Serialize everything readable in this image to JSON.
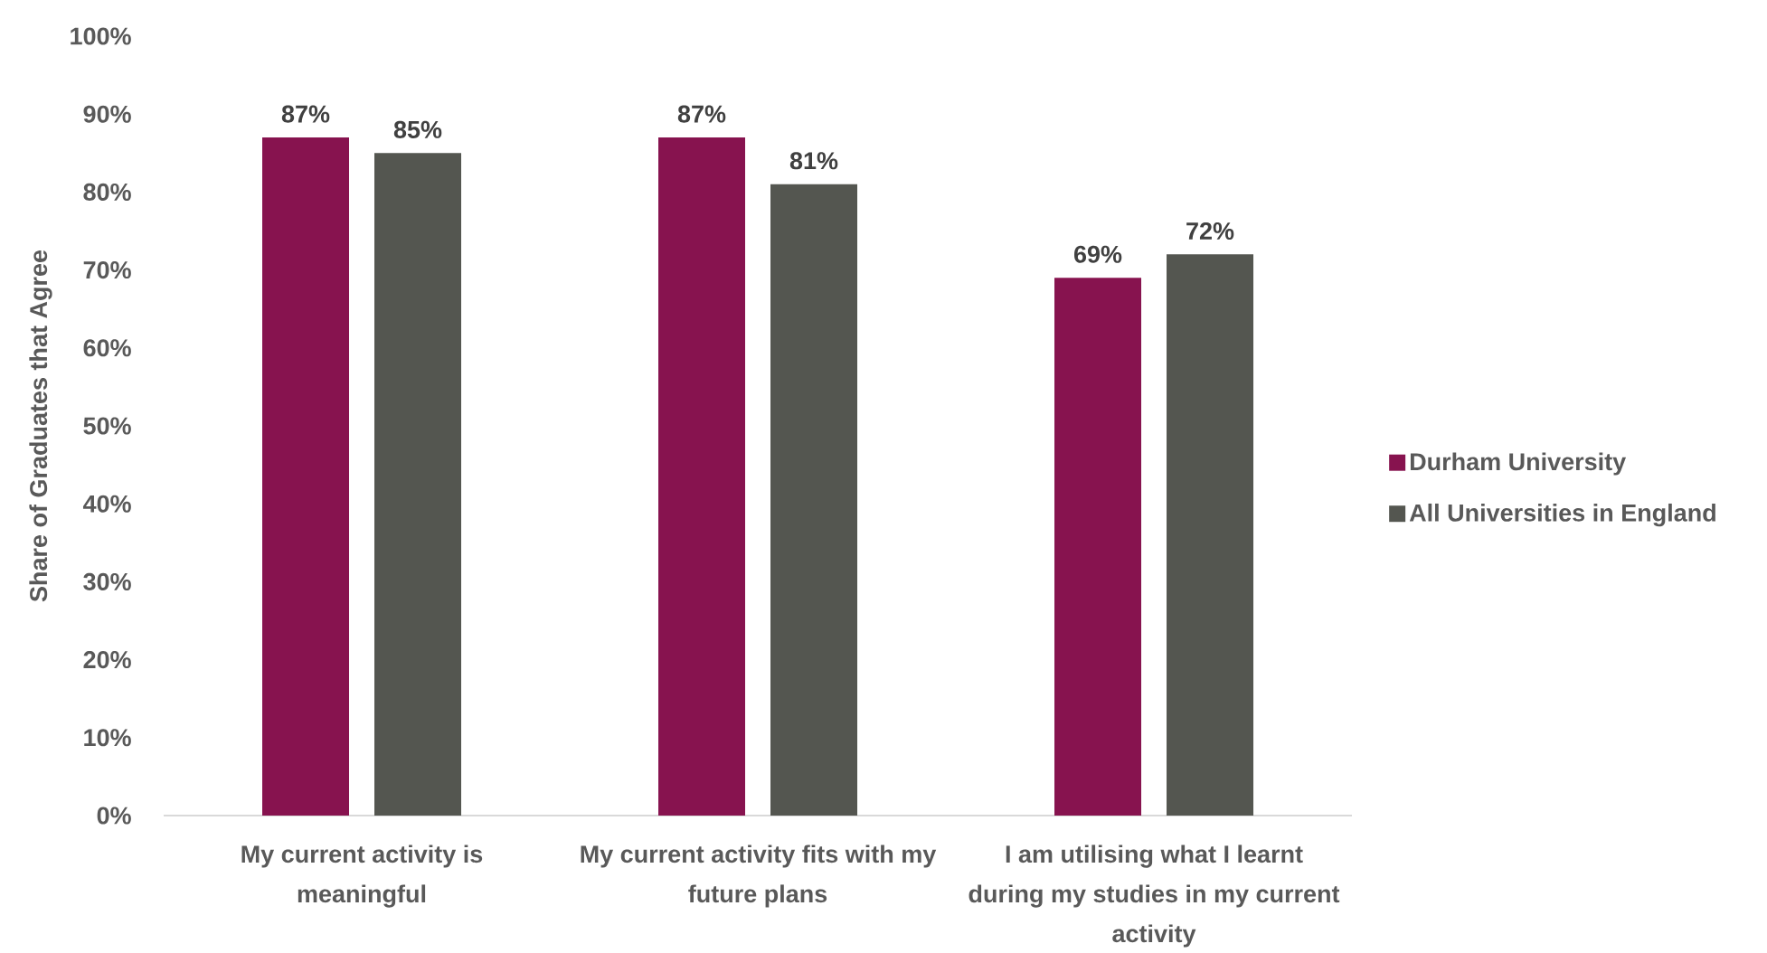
{
  "chart_data": {
    "type": "bar",
    "ylabel": "Share of Graduates that Agree",
    "categories": [
      "My current activity is meaningful",
      "My current activity fits with my future plans",
      "I am utilising what I learnt during my studies in my current activity"
    ],
    "series": [
      {
        "name": "Durham University",
        "color": "#87134f",
        "values": [
          87,
          87,
          69
        ],
        "value_labels": [
          "87%",
          "87%",
          "69%"
        ]
      },
      {
        "name": "All Universities in England",
        "color": "#545650",
        "values": [
          85,
          81,
          72
        ],
        "value_labels": [
          "85%",
          "81%",
          "72%"
        ]
      }
    ],
    "ylim": [
      0,
      100
    ],
    "yticks": [
      {
        "value": 0,
        "label": "0%"
      },
      {
        "value": 10,
        "label": "10%"
      },
      {
        "value": 20,
        "label": "20%"
      },
      {
        "value": 30,
        "label": "30%"
      },
      {
        "value": 40,
        "label": "40%"
      },
      {
        "value": 50,
        "label": "50%"
      },
      {
        "value": 60,
        "label": "60%"
      },
      {
        "value": 70,
        "label": "70%"
      },
      {
        "value": 80,
        "label": "80%"
      },
      {
        "value": 90,
        "label": "90%"
      },
      {
        "value": 100,
        "label": "100%"
      }
    ],
    "legend": "right"
  }
}
